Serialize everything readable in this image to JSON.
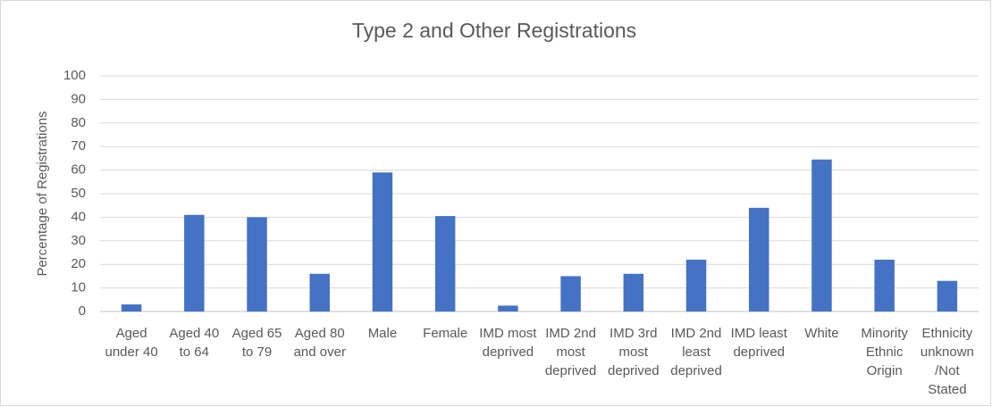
{
  "chart_data": {
    "type": "bar",
    "title": "Type 2 and Other Registrations",
    "y_label": "Percentage of Registrations",
    "categories": [
      "Aged under 40",
      "Aged 40 to 64",
      "Aged 65 to 79",
      "Aged 80 and over",
      "Male",
      "Female",
      "IMD most deprived",
      "IMD 2nd most deprived",
      "IMD 3rd most deprived",
      "IMD 2nd least deprived",
      "IMD least deprived",
      "White",
      "Minority Ethnic Origin",
      "Ethnicity unknown /Not Stated"
    ],
    "values": [
      3,
      41,
      40,
      16,
      59,
      40.5,
      2.5,
      15,
      16,
      22,
      44,
      64.5,
      22,
      13
    ],
    "color": "#4472c4",
    "ylim": [
      0,
      100
    ],
    "yticks": [
      0,
      10,
      20,
      30,
      40,
      50,
      60,
      70,
      80,
      90,
      100
    ],
    "grid": true
  }
}
